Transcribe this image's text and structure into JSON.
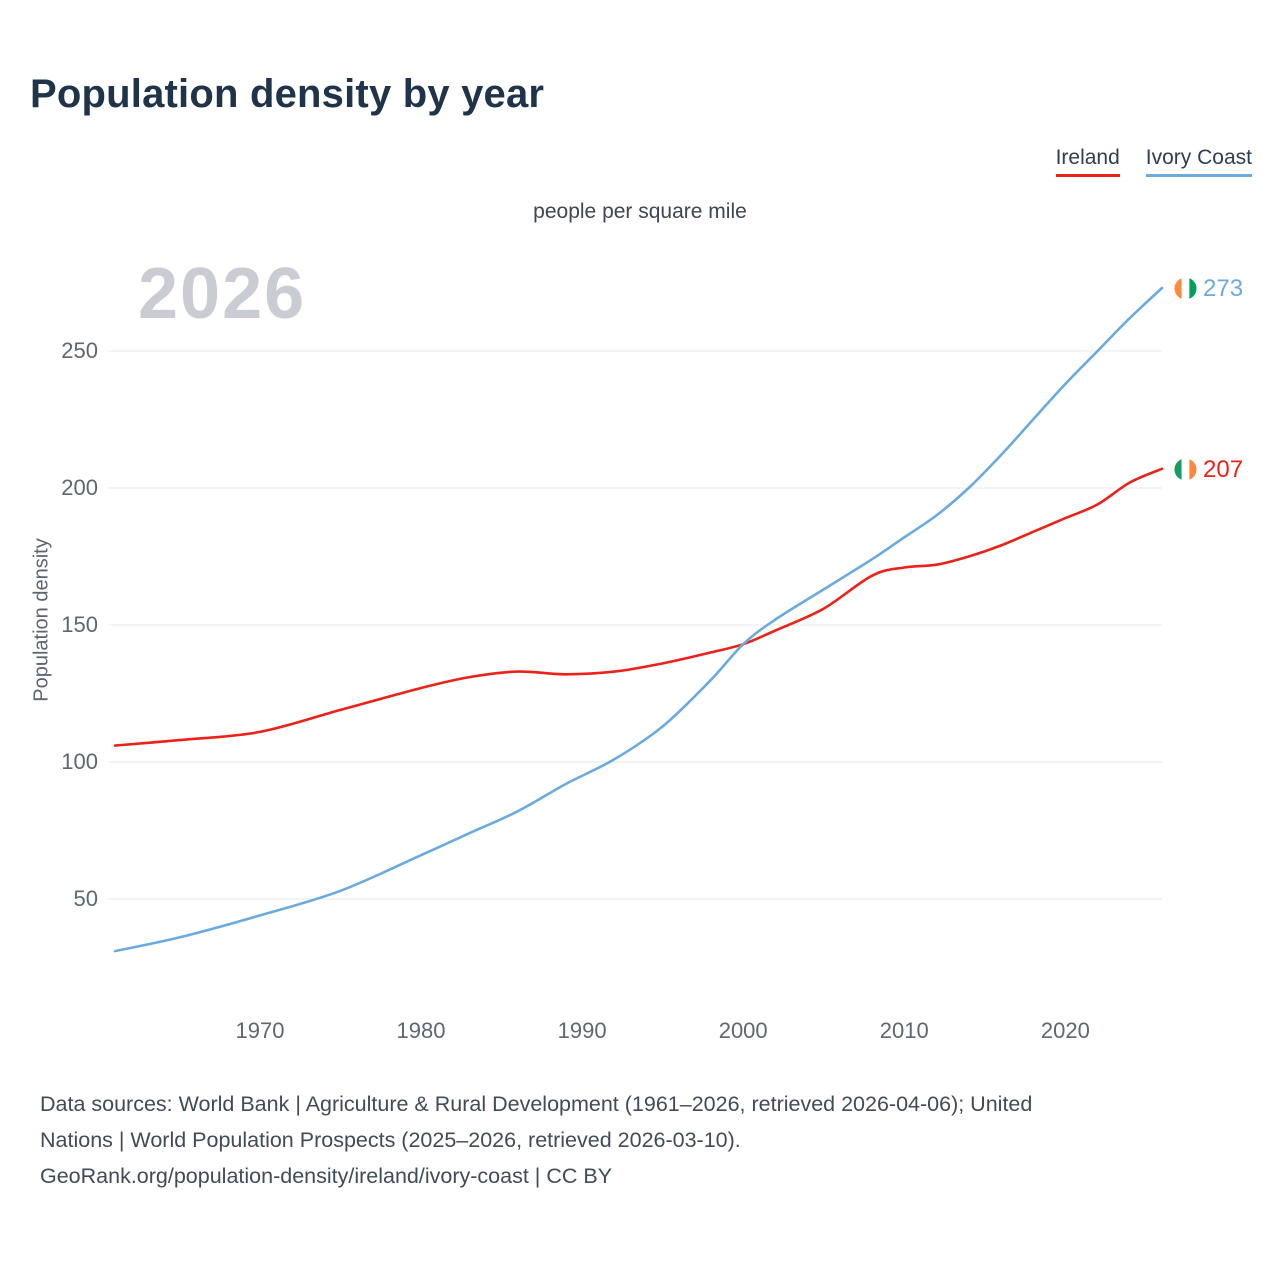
{
  "header": {
    "title": "Population density by year"
  },
  "legend": {
    "ireland": "Ireland",
    "ivory_coast": "Ivory Coast"
  },
  "watermark": "2026",
  "end_labels": {
    "ivory_coast": {
      "value": "273"
    },
    "ireland": {
      "value": "207"
    }
  },
  "footer": {
    "lines": [
      "Data sources: World Bank | Agriculture & Rural Development (1961–2026, retrieved 2026-04-06); United",
      "Nations | World Population Prospects (2025–2026, retrieved 2026-03-10).",
      "GeoRank.org/population-density/ireland/ivory-coast | CC BY"
    ]
  },
  "colors": {
    "ireland_red": "#ea2218",
    "ivory_coast_blue": "#6baade",
    "title_navy": "#1f334a",
    "gridline": "#e7e9eb",
    "watermark_gray": "#c9ccd2"
  },
  "chart_data": {
    "type": "line",
    "title": "Population density by year",
    "subtitle": "people per square mile",
    "xlabel": "",
    "ylabel": "Population density",
    "units": "people per square mile",
    "grid": "horizontal",
    "legend_position": "top-right",
    "xlim": [
      1961,
      2026
    ],
    "ylim": [
      0,
      285
    ],
    "yticks": [
      50,
      100,
      150,
      200,
      250
    ],
    "xticks": [
      1970,
      1980,
      1990,
      2000,
      2010,
      2020
    ],
    "x": [
      1961,
      1965,
      1970,
      1975,
      1980,
      1983,
      1986,
      1989,
      1992,
      1995,
      1998,
      2000,
      2002,
      2005,
      2008,
      2010,
      2012,
      2014,
      2016,
      2018,
      2020,
      2022,
      2024,
      2026
    ],
    "series": [
      {
        "name": "Ireland",
        "color": "#ea2218",
        "end_value": 207,
        "values": [
          106,
          108,
          111,
          119,
          127,
          131,
          133,
          132,
          133,
          136,
          140,
          143,
          148,
          156,
          168,
          171,
          172,
          175,
          179,
          184,
          189,
          194,
          202,
          207
        ]
      },
      {
        "name": "Ivory Coast",
        "color": "#6baade",
        "end_value": 273,
        "values": [
          31,
          36,
          44,
          53,
          66,
          74,
          82,
          92,
          101,
          113,
          130,
          143,
          152,
          163,
          174,
          182,
          190,
          200,
          212,
          225,
          238,
          250,
          262,
          273
        ]
      }
    ]
  }
}
